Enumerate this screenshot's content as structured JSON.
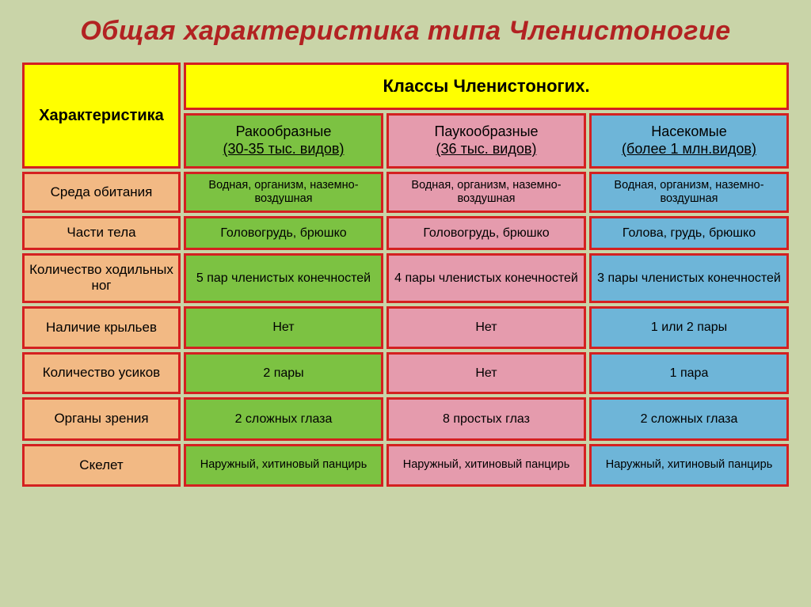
{
  "title": "Общая характеристика типа Членистоногие",
  "header": {
    "char": "Характеристика",
    "classes": "Классы Членистоногих.",
    "col1_name": "Ракообразные",
    "col1_sub": "(30-35 тыс. видов)",
    "col2_name": "Паукообразные",
    "col2_sub": "(36 тыс. видов)",
    "col3_name": "Насекомые",
    "col3_sub": "(более 1 млн.видов)"
  },
  "rows": {
    "r0": {
      "label": "Среда обитания",
      "c1": "Водная, организм, наземно-воздушная",
      "c2": "Водная, организм, наземно-воздушная",
      "c3": "Водная, организм, наземно-воздушная"
    },
    "r1": {
      "label": "Части тела",
      "c1": "Головогрудь, брюшко",
      "c2": "Головогрудь, брюшко",
      "c3": "Голова, грудь, брюшко"
    },
    "r2": {
      "label": "Количество ходильных ног",
      "c1": "5 пар членистых конечностей",
      "c2": "4 пары членистых конечностей",
      "c3": "3 пары членистых конечностей"
    },
    "r3": {
      "label": "Наличие крыльев",
      "c1": "Нет",
      "c2": "Нет",
      "c3": "1 или 2 пары"
    },
    "r4": {
      "label": "Количество усиков",
      "c1": "2 пары",
      "c2": "Нет",
      "c3": "1 пара"
    },
    "r5": {
      "label": "Органы зрения",
      "c1": "2 сложных глаза",
      "c2": "8 простых глаз",
      "c3": "2 сложных глаза"
    },
    "r6": {
      "label": "Скелет",
      "c1": "Наружный, хитиновый панцирь",
      "c2": "Наружный, хитиновый панцирь",
      "c3": "Наружный, хитиновый панцирь"
    }
  },
  "colors": {
    "background": "#c9d4a8",
    "title": "#b22222",
    "border": "#d42020",
    "yellow": "#ffff00",
    "orange": "#f2b984",
    "green": "#7cc242",
    "pink": "#e59bad",
    "blue": "#6eb5d8"
  }
}
